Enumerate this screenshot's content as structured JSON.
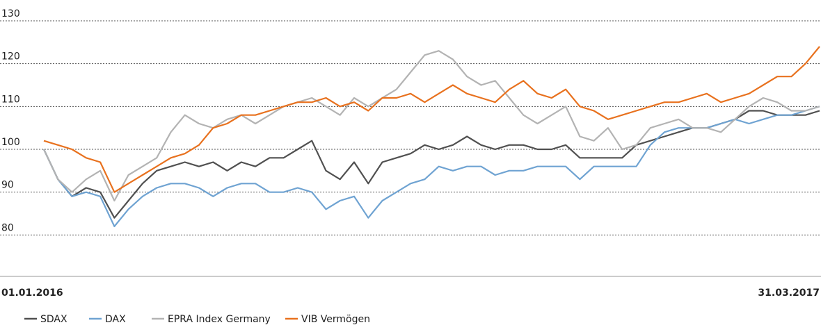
{
  "chart_data": {
    "type": "line",
    "categories": [
      "01.01.2016",
      null,
      null,
      null,
      null,
      null,
      null,
      null,
      null,
      null,
      null,
      null,
      null,
      null,
      null,
      null,
      null,
      null,
      null,
      null,
      null,
      null,
      null,
      null,
      null,
      null,
      null,
      null,
      null,
      null,
      null,
      null,
      null,
      null,
      null,
      null,
      null,
      null,
      null,
      null,
      null,
      null,
      null,
      null,
      null,
      null,
      null,
      null,
      null,
      null,
      null,
      null,
      null,
      null,
      null,
      "31.03.2017"
    ],
    "series": [
      {
        "name": "SDAX",
        "color": "#505050",
        "values": [
          100,
          93,
          89,
          91,
          90,
          84,
          88,
          92,
          95,
          96,
          97,
          96,
          97,
          95,
          97,
          96,
          98,
          98,
          100,
          102,
          95,
          93,
          97,
          92,
          97,
          98,
          99,
          101,
          100,
          101,
          103,
          101,
          100,
          101,
          101,
          100,
          100,
          101,
          98,
          98,
          98,
          98,
          101,
          102,
          103,
          104,
          105,
          105,
          106,
          107,
          109,
          109,
          108,
          108,
          108,
          109
        ]
      },
      {
        "name": "DAX",
        "color": "#6fa3d2",
        "values": [
          100,
          93,
          89,
          90,
          89,
          82,
          86,
          89,
          91,
          92,
          92,
          91,
          89,
          91,
          92,
          92,
          90,
          90,
          91,
          90,
          86,
          88,
          89,
          84,
          88,
          90,
          92,
          93,
          96,
          95,
          96,
          96,
          94,
          95,
          95,
          96,
          96,
          96,
          93,
          96,
          96,
          96,
          96,
          101,
          104,
          105,
          105,
          105,
          106,
          107,
          106,
          107,
          108,
          108,
          109,
          110
        ]
      },
      {
        "name": "EPRA Index Germany",
        "color": "#b3b3b3",
        "values": [
          100,
          93,
          90,
          93,
          95,
          88,
          94,
          96,
          98,
          104,
          108,
          106,
          105,
          107,
          108,
          106,
          108,
          110,
          111,
          112,
          110,
          108,
          112,
          110,
          112,
          114,
          118,
          122,
          123,
          121,
          117,
          115,
          116,
          112,
          108,
          106,
          108,
          110,
          103,
          102,
          105,
          100,
          101,
          105,
          106,
          107,
          105,
          105,
          104,
          107,
          110,
          112,
          111,
          109,
          109,
          110
        ]
      },
      {
        "name": "VIB Vermögen",
        "color": "#e8711e",
        "values": [
          102,
          101,
          100,
          98,
          97,
          90,
          92,
          94,
          96,
          98,
          99,
          101,
          105,
          106,
          108,
          108,
          109,
          110,
          111,
          111,
          112,
          110,
          111,
          109,
          112,
          112,
          113,
          111,
          113,
          115,
          113,
          112,
          111,
          114,
          116,
          113,
          112,
          114,
          110,
          109,
          107,
          108,
          109,
          110,
          111,
          111,
          112,
          113,
          111,
          112,
          113,
          115,
          117,
          117,
          120,
          124
        ]
      }
    ],
    "ylim": [
      70,
      130
    ],
    "yticks": [
      80,
      90,
      100,
      110,
      120,
      130
    ],
    "grid": true
  }
}
